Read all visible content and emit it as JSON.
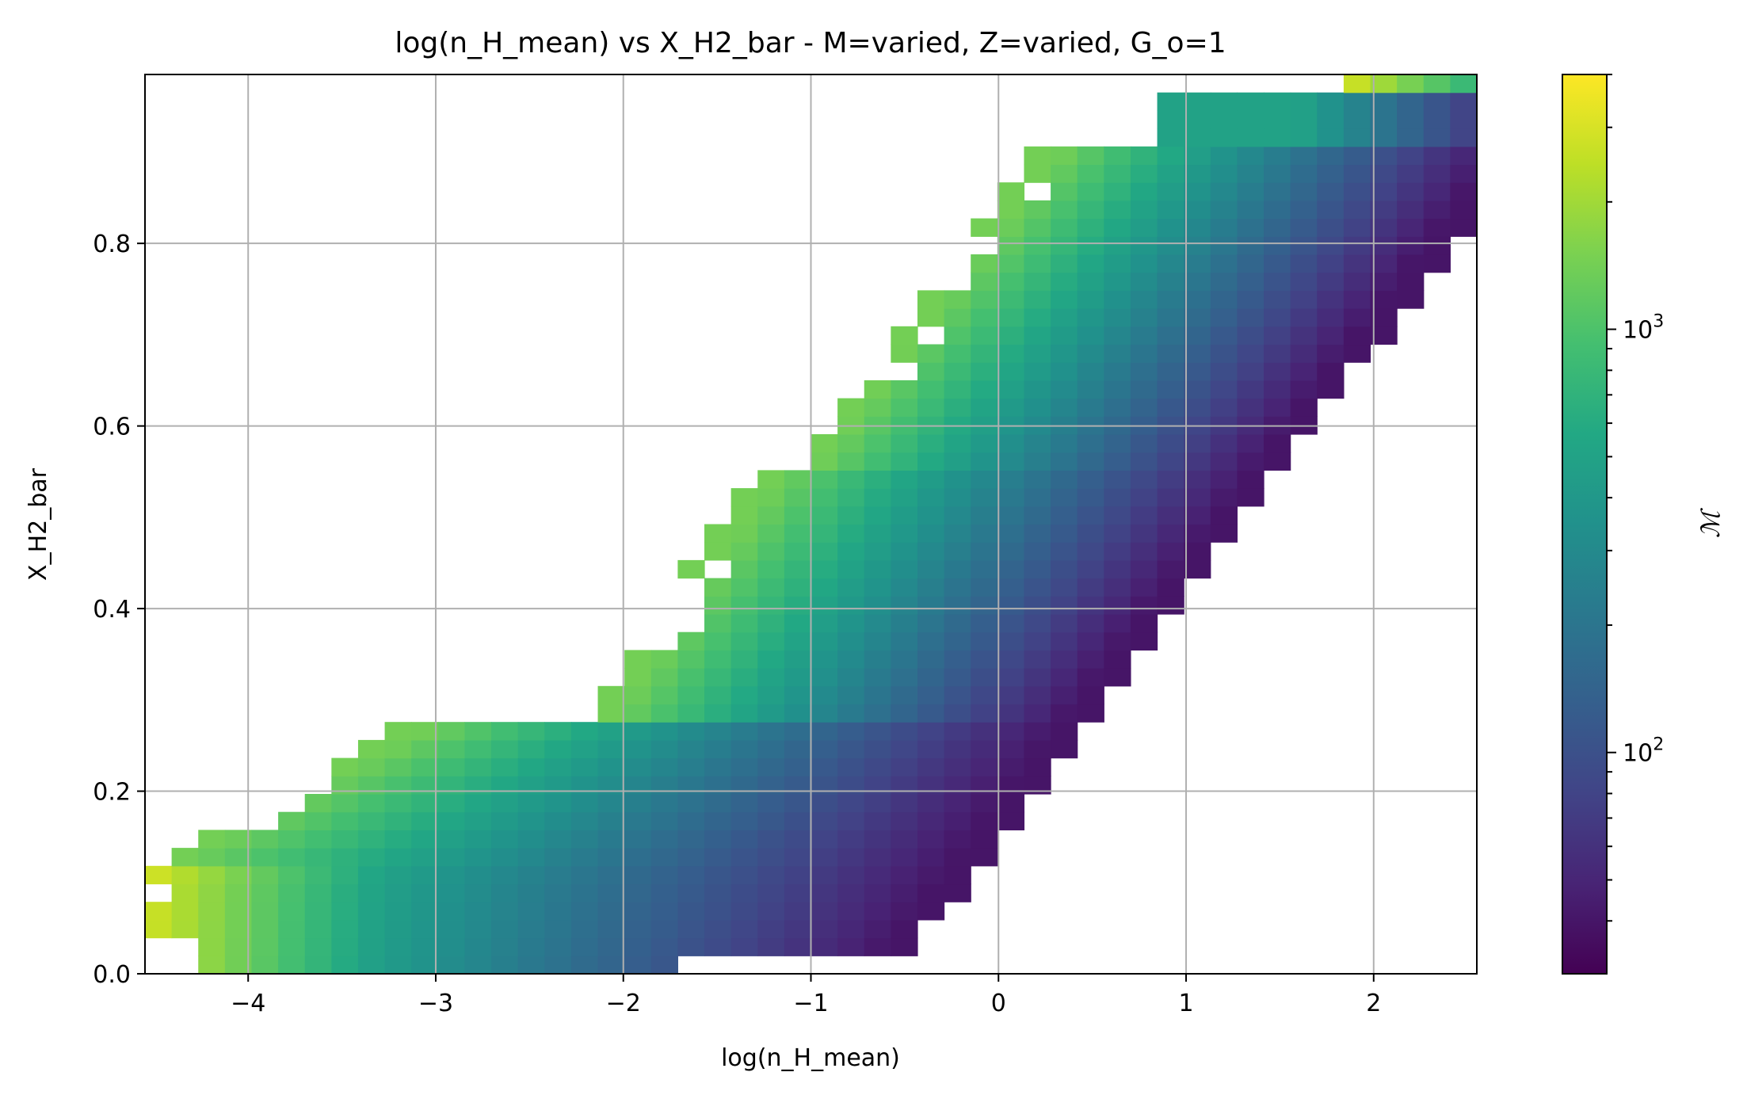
{
  "chart_data": {
    "type": "heatmap",
    "title": "log(n_H_mean) vs X_H2_bar - M=varied, Z=varied, G_o=1",
    "xlabel": "log(n_H_mean)",
    "ylabel": "X_H2_bar",
    "xlim": [
      -4.55,
      2.55
    ],
    "ylim": [
      0.0,
      0.985
    ],
    "xticks": [
      -4,
      -3,
      -2,
      -1,
      0,
      1,
      2
    ],
    "xtick_labels": [
      "−4",
      "−3",
      "−2",
      "−1",
      "0",
      "1",
      "2"
    ],
    "yticks": [
      0.0,
      0.2,
      0.4,
      0.6,
      0.8
    ],
    "ytick_labels": [
      "0.0",
      "0.2",
      "0.4",
      "0.6",
      "0.8"
    ],
    "grid": true,
    "colormap": "viridis",
    "colorbar": {
      "label": "ℳ",
      "scale": "log",
      "range": [
        30,
        4000
      ],
      "major_ticks": [
        {
          "value": 100,
          "base": "10",
          "exp": "2"
        },
        {
          "value": 1000,
          "base": "10",
          "exp": "3"
        }
      ]
    },
    "bin_size": {
      "x": 0.142,
      "y": 0.0197
    },
    "notes_on_values": "cell color encodes log10(M); values estimated from colorbar"
  }
}
